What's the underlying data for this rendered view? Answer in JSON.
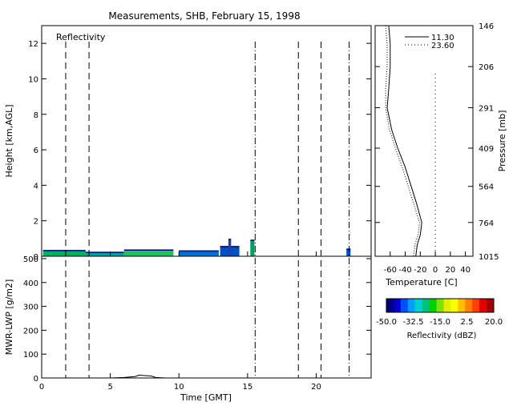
{
  "title": "Measurements, SHB, February 15, 1998",
  "reflectivity_panel": {
    "label": "Reflectivity",
    "ylabel": "Height [km,AGL]",
    "ylim": [
      0,
      13
    ],
    "yticks": [
      0,
      2,
      4,
      6,
      8,
      10,
      12
    ]
  },
  "lwp_panel": {
    "ylabel": "MWR-LWP [g/m2]",
    "ylim": [
      0,
      510
    ],
    "yticks": [
      0,
      100,
      200,
      300,
      400,
      500
    ]
  },
  "time_axis": {
    "xlabel": "Time [GMT]",
    "xlim": [
      0,
      24
    ],
    "xticks": [
      0,
      5,
      10,
      15,
      20
    ]
  },
  "sounding_panel": {
    "ylabel": "Pressure [mb]",
    "pressure_ticks": [
      "146",
      "206",
      "291",
      "409",
      "564",
      "764",
      "1015"
    ],
    "xlabel": "Temperature [C]",
    "xlim": [
      -80,
      50
    ],
    "xticks": [
      -60,
      -40,
      -20,
      0,
      20,
      40
    ],
    "legend": [
      "11.30",
      "23.60"
    ]
  },
  "colorbar": {
    "label": "Reflectivity (dBZ)",
    "ticks": [
      "-50.0",
      "-32.5",
      "-15.0",
      "2.5",
      "20.0"
    ],
    "colors": [
      "#000080",
      "#0000cd",
      "#0050ff",
      "#00a0ff",
      "#00d0d0",
      "#00c080",
      "#00d000",
      "#80e000",
      "#e0f000",
      "#ffff00",
      "#ffc000",
      "#ff8000",
      "#ff4000",
      "#e00000",
      "#a00000"
    ]
  },
  "chart_data": {
    "type": "line",
    "marker_times_dashed": [
      1.75,
      3.45,
      18.7,
      20.35
    ],
    "marker_times_dashdot": [
      15.55,
      22.4
    ],
    "cloud_echo_segments": [
      {
        "t0": 0.1,
        "t1": 3.2,
        "top_km": 0.32,
        "color": "#00b060"
      },
      {
        "t0": 3.2,
        "t1": 6.0,
        "top_km": 0.22,
        "color": "#00a0a0"
      },
      {
        "t0": 6.0,
        "t1": 9.6,
        "top_km": 0.35,
        "color": "#20c060"
      },
      {
        "t0": 10.0,
        "t1": 12.9,
        "top_km": 0.3,
        "color": "#0070d0"
      },
      {
        "t0": 13.0,
        "t1": 14.4,
        "top_km": 0.55,
        "color": "#0050c0"
      },
      {
        "t0": 13.6,
        "t1": 13.8,
        "top_km": 0.95,
        "color": "#2040b0"
      },
      {
        "t0": 15.2,
        "t1": 15.5,
        "top_km": 0.9,
        "color": "#00a060"
      },
      {
        "t0": 22.2,
        "t1": 22.5,
        "top_km": 0.4,
        "color": "#0050c0"
      }
    ],
    "lwp": {
      "x": [
        0,
        2,
        4,
        5,
        6,
        6.8,
        7.1,
        7.5,
        8.0,
        8.3,
        9,
        10,
        12,
        14,
        15,
        16,
        18,
        20,
        22,
        23.5
      ],
      "y": [
        0,
        0,
        0,
        0,
        2,
        6,
        12,
        10,
        8,
        2,
        0,
        0,
        0,
        0,
        0,
        0,
        0,
        0,
        0,
        0
      ]
    },
    "soundings": [
      {
        "name": "11.30",
        "style": "solid",
        "pressure": [
          146,
          170,
          206,
          250,
          291,
          350,
          409,
          480,
          564,
          650,
          764,
          850,
          920,
          1015
        ],
        "temperature": [
          -62,
          -60,
          -60,
          -62,
          -64,
          -58,
          -50,
          -40,
          -32,
          -25,
          -18,
          -20,
          -24,
          -26
        ]
      },
      {
        "name": "23.60",
        "style": "dotted",
        "pressure": [
          146,
          170,
          206,
          250,
          291,
          350,
          409,
          480,
          564,
          650,
          764,
          850,
          920,
          1015
        ],
        "temperature": [
          -66,
          -64,
          -64,
          -66,
          -66,
          -61,
          -53,
          -44,
          -36,
          -29,
          -21,
          -23,
          -27,
          -29
        ]
      }
    ],
    "zero_line_temperature": 0
  }
}
